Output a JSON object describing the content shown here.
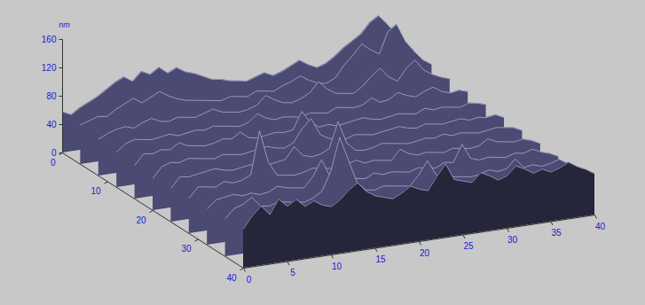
{
  "chart_data": {
    "type": "surface",
    "zlabel": "nm",
    "color": "#4a4a72",
    "x": [
      0,
      1,
      2,
      3,
      4,
      5,
      6,
      7,
      8,
      9,
      10,
      11,
      12,
      13,
      14,
      15,
      16,
      17,
      18,
      19,
      20,
      21,
      22,
      23,
      24,
      25,
      26,
      27,
      28,
      29,
      30,
      31,
      32,
      33,
      34,
      35,
      36,
      37,
      38,
      39,
      40
    ],
    "y": [
      0,
      4,
      8,
      12,
      16,
      20,
      24,
      28,
      32,
      36,
      40
    ],
    "z": [
      [
        58,
        52,
        60,
        66,
        72,
        80,
        88,
        94,
        86,
        98,
        92,
        100,
        90,
        96,
        88,
        84,
        78,
        72,
        70,
        66,
        64,
        62,
        66,
        70,
        64,
        68,
        74,
        80,
        72,
        66,
        70,
        78,
        88,
        96,
        104,
        118,
        126,
        112,
        96,
        80,
        70
      ],
      [
        56,
        60,
        64,
        62,
        70,
        76,
        82,
        74,
        80,
        86,
        78,
        72,
        68,
        66,
        64,
        62,
        60,
        64,
        62,
        60,
        66,
        64,
        62,
        68,
        72,
        78,
        70,
        64,
        62,
        68,
        84,
        96,
        110,
        100,
        92,
        122,
        130,
        104,
        88,
        74,
        66
      ],
      [
        52,
        58,
        62,
        64,
        60,
        66,
        70,
        64,
        62,
        66,
        64,
        62,
        66,
        70,
        64,
        62,
        60,
        62,
        66,
        78,
        70,
        64,
        62,
        66,
        72,
        86,
        74,
        66,
        64,
        62,
        70,
        82,
        92,
        78,
        70,
        86,
        96,
        80,
        72,
        66,
        62
      ],
      [
        50,
        60,
        64,
        62,
        60,
        62,
        64,
        60,
        62,
        64,
        62,
        66,
        64,
        62,
        60,
        64,
        74,
        66,
        62,
        64,
        62,
        60,
        64,
        62,
        60,
        66,
        64,
        62,
        64,
        72,
        64,
        66,
        74,
        68,
        64,
        70,
        74,
        66,
        62,
        64,
        60
      ],
      [
        48,
        62,
        60,
        64,
        62,
        70,
        64,
        62,
        60,
        62,
        66,
        64,
        72,
        62,
        60,
        62,
        64,
        62,
        64,
        88,
        70,
        62,
        64,
        60,
        62,
        64,
        66,
        62,
        60,
        62,
        64,
        62,
        60,
        66,
        62,
        64,
        62,
        60,
        64,
        62,
        58
      ],
      [
        46,
        60,
        64,
        62,
        66,
        64,
        62,
        60,
        64,
        62,
        60,
        62,
        64,
        66,
        62,
        60,
        66,
        84,
        96,
        72,
        64,
        62,
        60,
        64,
        62,
        60,
        62,
        64,
        66,
        62,
        60,
        64,
        62,
        60,
        62,
        64,
        60,
        62,
        60,
        62,
        56
      ],
      [
        48,
        62,
        60,
        62,
        64,
        66,
        62,
        60,
        62,
        64,
        62,
        60,
        62,
        64,
        80,
        66,
        62,
        64,
        70,
        106,
        74,
        62,
        60,
        62,
        66,
        64,
        62,
        60,
        62,
        64,
        62,
        66,
        62,
        64,
        62,
        60,
        62,
        64,
        62,
        60,
        54
      ],
      [
        50,
        64,
        62,
        60,
        66,
        62,
        64,
        70,
        130,
        84,
        64,
        62,
        60,
        62,
        66,
        64,
        62,
        60,
        64,
        68,
        62,
        64,
        62,
        60,
        74,
        66,
        62,
        64,
        62,
        60,
        64,
        62,
        60,
        62,
        70,
        64,
        62,
        60,
        62,
        58,
        52
      ],
      [
        52,
        62,
        64,
        66,
        62,
        64,
        60,
        62,
        68,
        64,
        62,
        60,
        74,
        96,
        70,
        62,
        64,
        62,
        60,
        66,
        62,
        64,
        62,
        60,
        64,
        62,
        60,
        66,
        64,
        88,
        66,
        62,
        64,
        62,
        60,
        64,
        62,
        66,
        60,
        56,
        50
      ],
      [
        54,
        66,
        70,
        78,
        64,
        62,
        66,
        64,
        62,
        60,
        64,
        72,
        98,
        144,
        110,
        76,
        64,
        62,
        66,
        64,
        62,
        60,
        74,
        92,
        70,
        66,
        64,
        62,
        60,
        62,
        66,
        62,
        64,
        76,
        62,
        64,
        60,
        62,
        66,
        58,
        52
      ],
      [
        56,
        72,
        84,
        70,
        90,
        78,
        86,
        74,
        80,
        72,
        68,
        76,
        88,
        96,
        82,
        74,
        70,
        66,
        72,
        80,
        74,
        70,
        88,
        104,
        80,
        76,
        72,
        84,
        78,
        70,
        74,
        86,
        80,
        72,
        76,
        70,
        74,
        80,
        72,
        66,
        58
      ]
    ],
    "xlim": [
      0,
      40
    ],
    "ylim": [
      0,
      40
    ],
    "zlim": [
      0,
      160
    ],
    "xticks": [
      0,
      5,
      10,
      15,
      20,
      25,
      30,
      35,
      40
    ],
    "yticks": [
      0,
      10,
      20,
      30,
      40
    ],
    "zticks": [
      0,
      40,
      80,
      120,
      160
    ]
  }
}
